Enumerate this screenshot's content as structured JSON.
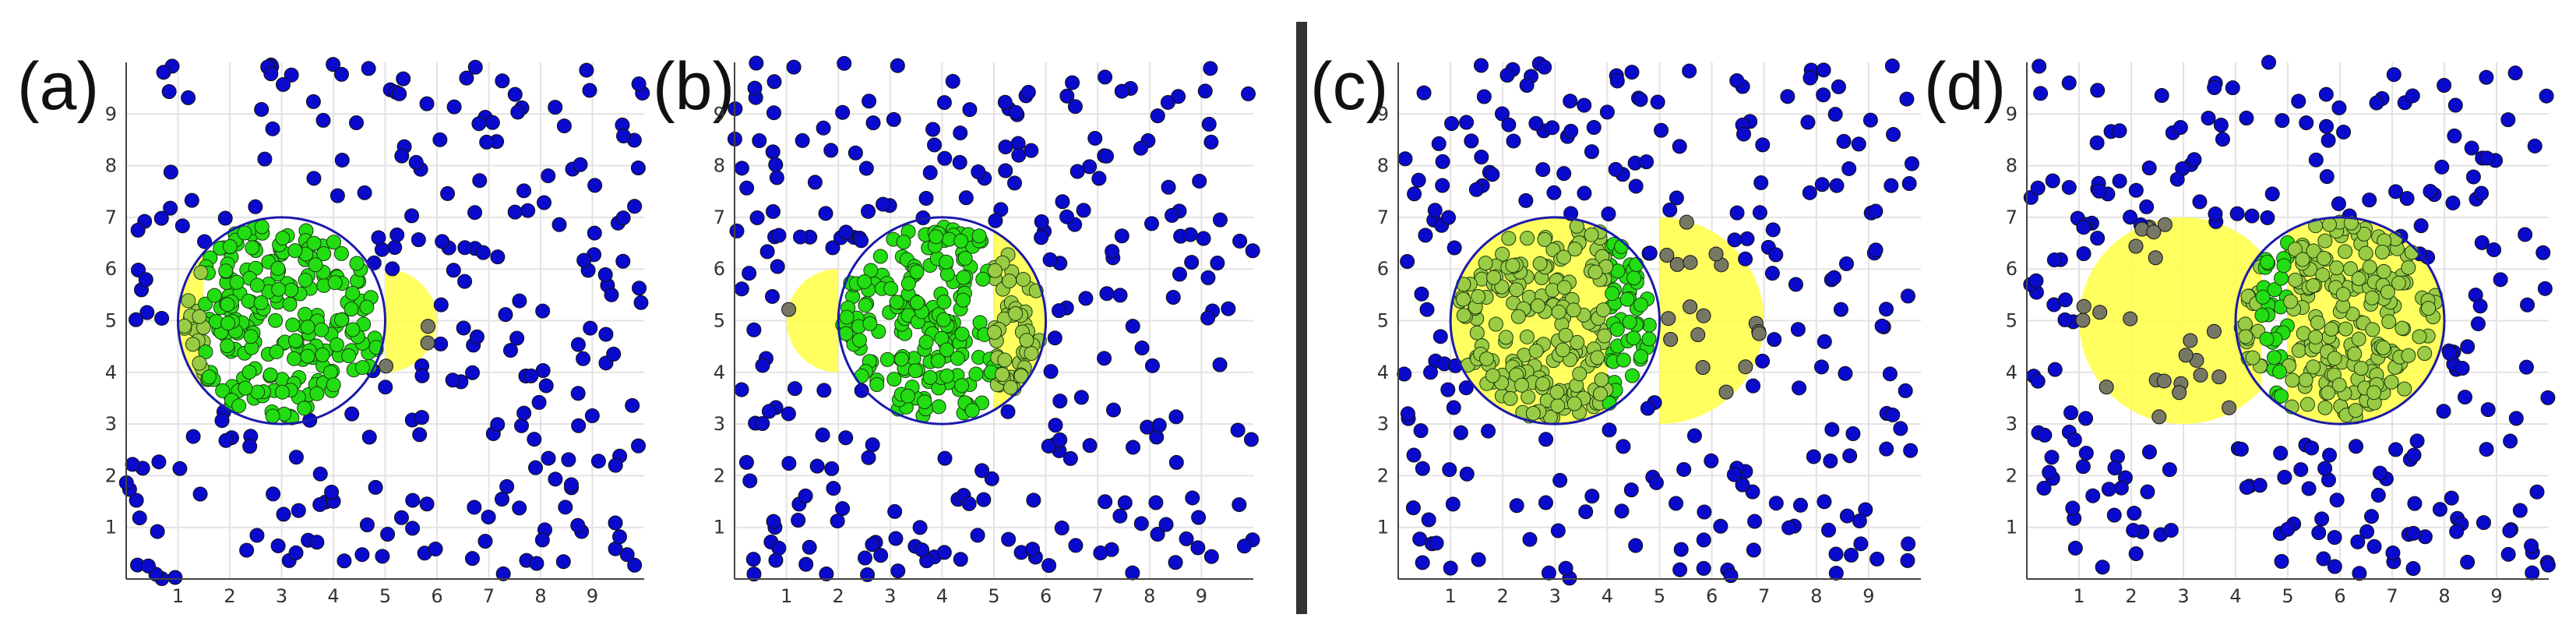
{
  "chart_data": [
    {
      "type": "scatter",
      "panel_label": "(a)",
      "xlim": [
        0,
        10
      ],
      "ylim": [
        0,
        10
      ],
      "xticks": [
        "1",
        "2",
        "3",
        "4",
        "5",
        "6",
        "7",
        "8",
        "9"
      ],
      "yticks": [
        "1",
        "2",
        "3",
        "4",
        "5",
        "6",
        "7",
        "8",
        "9"
      ],
      "grid": true,
      "circle": {
        "center": [
          3,
          5
        ],
        "radius": 2
      },
      "highlights": [
        {
          "kind": "segment_left",
          "cx": 3,
          "cy": 5,
          "r": 2,
          "x_cut": 1.5
        },
        {
          "kind": "segment_right_outside",
          "cx": 5,
          "cy": 5,
          "r": 1,
          "x_from": 5
        }
      ],
      "seed": 11
    },
    {
      "type": "scatter",
      "panel_label": "(b)",
      "xlim": [
        0,
        10
      ],
      "ylim": [
        0,
        10
      ],
      "xticks": [
        "1",
        "2",
        "3",
        "4",
        "5",
        "6",
        "7",
        "8",
        "9"
      ],
      "yticks": [
        "1",
        "2",
        "3",
        "4",
        "5",
        "6",
        "7",
        "8",
        "9"
      ],
      "grid": true,
      "circle": {
        "center": [
          4,
          5
        ],
        "radius": 2
      },
      "highlights": [
        {
          "kind": "segment_left_outside",
          "cx": 2,
          "cy": 5,
          "r": 1,
          "x_to": 2
        },
        {
          "kind": "segment_right",
          "cx": 4,
          "cy": 5,
          "r": 2,
          "x_cut": 5
        }
      ],
      "seed": 23
    },
    {
      "type": "scatter",
      "panel_label": "(c)",
      "xlim": [
        0,
        10
      ],
      "ylim": [
        0,
        10
      ],
      "xticks": [
        "1",
        "2",
        "3",
        "4",
        "5",
        "6",
        "7",
        "8",
        "9"
      ],
      "yticks": [
        "1",
        "2",
        "3",
        "4",
        "5",
        "6",
        "7",
        "8",
        "9"
      ],
      "grid": true,
      "circle": {
        "center": [
          3,
          5
        ],
        "radius": 2
      },
      "highlights": [
        {
          "kind": "segment_left",
          "cx": 3,
          "cy": 5,
          "r": 2,
          "x_cut": 4
        },
        {
          "kind": "half_right",
          "cx": 5,
          "cy": 5,
          "r": 2
        }
      ],
      "seed": 37
    },
    {
      "type": "scatter",
      "panel_label": "(d)",
      "xlim": [
        0,
        10
      ],
      "ylim": [
        0,
        10
      ],
      "xticks": [
        "1",
        "2",
        "3",
        "4",
        "5",
        "6",
        "7",
        "8",
        "9"
      ],
      "yticks": [
        "1",
        "2",
        "3",
        "4",
        "5",
        "6",
        "7",
        "8",
        "9"
      ],
      "grid": true,
      "circle": {
        "center": [
          6,
          5
        ],
        "radius": 2
      },
      "highlights": [
        {
          "kind": "segment_left_outside",
          "cx": 3,
          "cy": 5,
          "r": 2,
          "x_to": 4.5
        },
        {
          "kind": "segment_right",
          "cx": 6,
          "cy": 5,
          "r": 2,
          "x_cut": 5
        }
      ],
      "seed": 53
    }
  ],
  "colors": {
    "point_outside": "#0a0acc",
    "point_inside": "#22dd11",
    "point_in_highlight": "#99cc44",
    "point_outside_in_highlight": "#777766",
    "highlight": "#ffff44",
    "circle": "#1a1aaa",
    "grid": "#e3e3e3",
    "axis": "#444444",
    "divider": "#333333"
  }
}
